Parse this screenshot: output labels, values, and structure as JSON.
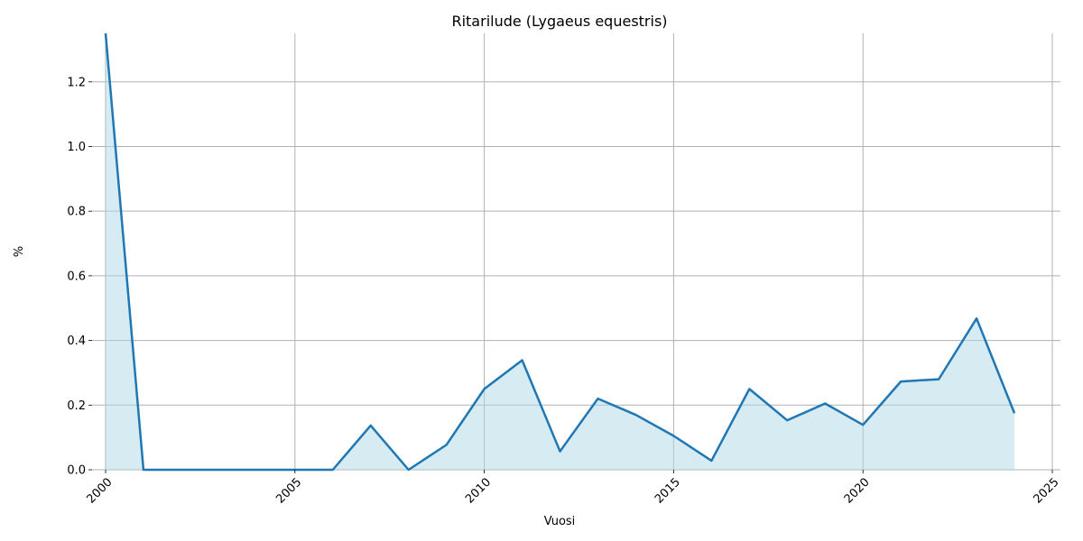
{
  "chart_data": {
    "type": "area",
    "title": "Ritarilude (Lygaeus equestris)",
    "xlabel": "Vuosi",
    "ylabel": "%",
    "xlim": [
      2000,
      2025
    ],
    "ylim": [
      0,
      1.35
    ],
    "xticks": [
      2000,
      2005,
      2010,
      2015,
      2020,
      2025
    ],
    "yticks": [
      0.0,
      0.2,
      0.4,
      0.6,
      0.8,
      1.0,
      1.2
    ],
    "ytick_labels": [
      "0.0",
      "0.2",
      "0.4",
      "0.6",
      "0.8",
      "1.0",
      "1.2"
    ],
    "grid": true,
    "x": [
      2000,
      2001,
      2002,
      2003,
      2004,
      2005,
      2006,
      2007,
      2008,
      2009,
      2010,
      2011,
      2012,
      2013,
      2014,
      2015,
      2016,
      2017,
      2018,
      2019,
      2020,
      2021,
      2022,
      2023,
      2024
    ],
    "series": [
      {
        "values": [
          1.35,
          0.0,
          0.0,
          0.0,
          0.0,
          0.0,
          0.0,
          0.137,
          0.0,
          0.077,
          0.25,
          0.339,
          0.057,
          0.22,
          0.17,
          0.105,
          0.028,
          0.25,
          0.153,
          0.205,
          0.139,
          0.273,
          0.28,
          0.468,
          0.175
        ],
        "line_color": "#1f77b4",
        "fill_color": "#add8e6"
      }
    ]
  }
}
